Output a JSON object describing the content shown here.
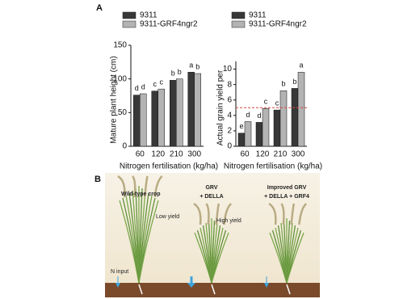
{
  "panel_labels": [
    "A",
    "B"
  ],
  "chart_data": [
    {
      "type": "bar",
      "ylabel": "Mature plant height (cm)",
      "xlabel": "Nitrogen fertilisation (kg/ha)",
      "categories": [
        "60",
        "120",
        "210",
        "300"
      ],
      "series": [
        {
          "name": "9311",
          "color": "#383838",
          "values": [
            76,
            82,
            98,
            110
          ],
          "letters": [
            "d",
            "c",
            "b",
            "a"
          ]
        },
        {
          "name": "9311-GRF4ngr2",
          "color": "#b3b3b3",
          "values": [
            78,
            85,
            100,
            108
          ],
          "letters": [
            "d",
            "c",
            "b",
            "b"
          ]
        }
      ],
      "ylim": [
        0,
        150
      ],
      "yticks": [
        0,
        50,
        100,
        150
      ]
    },
    {
      "type": "bar",
      "ylabel": "Actual grain yield per",
      "xlabel": "Nitrogen fertilisation (kg/ha)",
      "categories": [
        "60",
        "120",
        "210",
        "300"
      ],
      "series": [
        {
          "name": "9311",
          "color": "#383838",
          "values": [
            1.7,
            3.1,
            4.7,
            7.5
          ],
          "letters": [
            "e",
            "d",
            "c",
            "b"
          ]
        },
        {
          "name": "9311-GRF4ngr2",
          "color": "#b3b3b3",
          "values": [
            3.2,
            4.9,
            7.2,
            9.6
          ],
          "letters": [
            "d",
            "c",
            "b",
            "a"
          ]
        }
      ],
      "ylim": [
        0,
        11
      ],
      "yticks": [
        0,
        2,
        4,
        6,
        8,
        10
      ],
      "hline": {
        "value": 5,
        "color": "#d9473f"
      }
    }
  ],
  "illustration": {
    "wild_type": "Wild-type crop",
    "low_yield": "Low yield",
    "n_input": "N input",
    "grv": "GRV",
    "grv_della": "+ DELLA",
    "high_yield": "High yield",
    "improved_grv": "Improved GRV",
    "improved_della_grf4": "+ DELLA + GRF4"
  }
}
